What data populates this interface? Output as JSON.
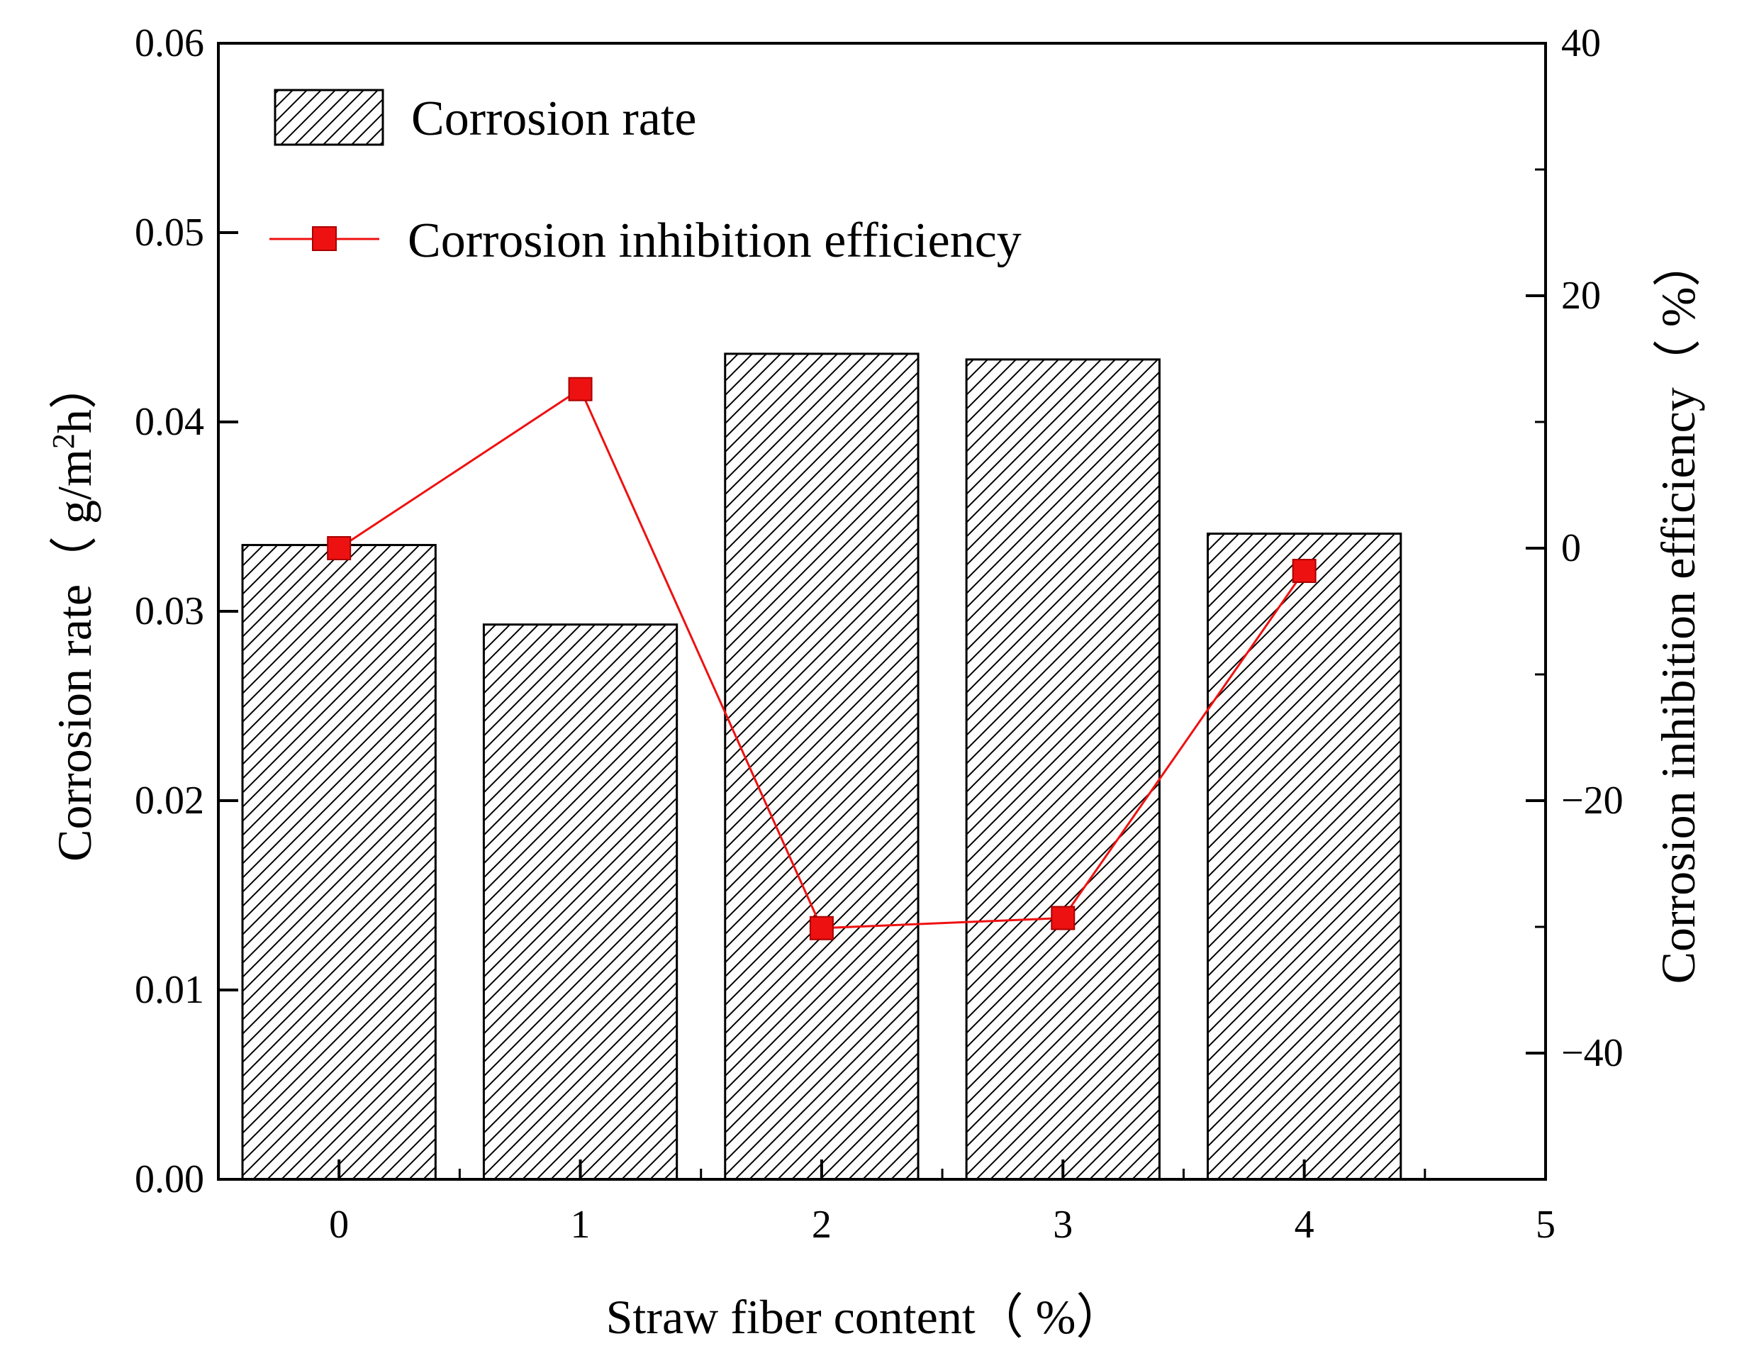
{
  "chart_data": {
    "type": "bar",
    "categories": [
      "0",
      "1",
      "2",
      "3",
      "4"
    ],
    "series": [
      {
        "name": "Corrosion rate",
        "type": "bar",
        "axis": "left",
        "values": [
          0.0335,
          0.0293,
          0.0436,
          0.0433,
          0.0341
        ]
      },
      {
        "name": "Corrosion inhibition efficiency",
        "type": "line",
        "axis": "right",
        "values": [
          0.0,
          12.6,
          -30.1,
          -29.3,
          -1.8
        ],
        "color": "#ee1111"
      }
    ],
    "x_axis": {
      "title": "Straw fiber content（ %）",
      "ticks": [
        0,
        1,
        2,
        3,
        4,
        5
      ],
      "tick_labels": [
        "0",
        "1",
        "2",
        "3",
        "4",
        "5"
      ],
      "range": [
        -0.5,
        5
      ]
    },
    "y_left": {
      "title_main": "Corrosion rate（ g/m",
      "title_sup": "2",
      "title_end": "h）",
      "range": [
        0,
        0.06
      ],
      "ticks": [
        0,
        0.01,
        0.02,
        0.03,
        0.04,
        0.05,
        0.06
      ],
      "tick_labels": [
        "0.00",
        "0.01",
        "0.02",
        "0.03",
        "0.04",
        "0.05",
        "0.06"
      ]
    },
    "y_right": {
      "title": "Corrosion inhibition efficiency（ %）",
      "range": [
        -50,
        40
      ],
      "ticks": [
        -40,
        -20,
        0,
        20,
        40
      ],
      "tick_labels": [
        "−40",
        "−20",
        "0",
        "20",
        "40"
      ]
    },
    "legend": {
      "position": "top-left",
      "entries": [
        "Corrosion rate",
        "Corrosion inhibition efficiency"
      ]
    },
    "grid": false
  }
}
